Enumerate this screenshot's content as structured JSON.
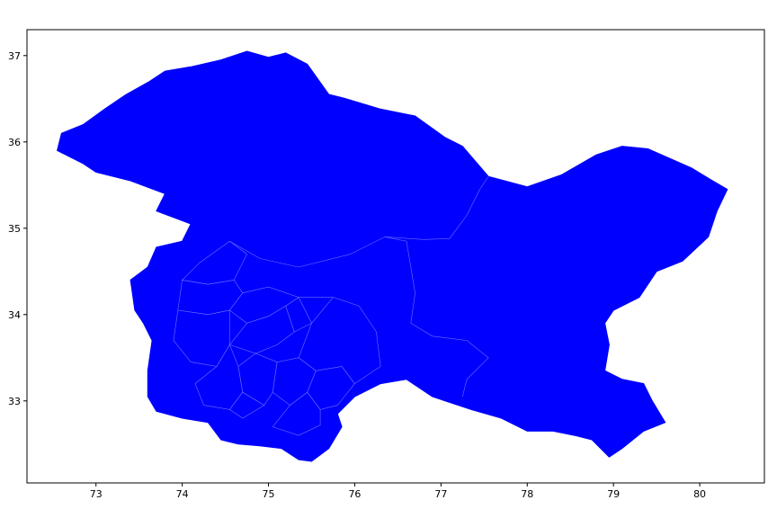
{
  "chart_data": {
    "type": "map",
    "title": "",
    "xlabel": "",
    "ylabel": "",
    "xlim": [
      72.2,
      80.75
    ],
    "ylim": [
      32.05,
      37.3
    ],
    "x_ticks": [
      73,
      74,
      75,
      76,
      77,
      78,
      79,
      80
    ],
    "y_ticks": [
      33,
      34,
      35,
      36,
      37
    ],
    "grid": false,
    "fill_color": "#0000ff",
    "boundary_color": "#6f6fff",
    "outline": [
      [
        72.55,
        35.9
      ],
      [
        72.6,
        36.1
      ],
      [
        72.85,
        36.2
      ],
      [
        73.1,
        36.38
      ],
      [
        73.35,
        36.55
      ],
      [
        73.62,
        36.7
      ],
      [
        73.8,
        36.82
      ],
      [
        74.1,
        36.87
      ],
      [
        74.45,
        36.95
      ],
      [
        74.75,
        37.05
      ],
      [
        75.0,
        36.98
      ],
      [
        75.2,
        37.03
      ],
      [
        75.45,
        36.9
      ],
      [
        75.7,
        36.55
      ],
      [
        75.9,
        36.5
      ],
      [
        76.3,
        36.38
      ],
      [
        76.7,
        36.3
      ],
      [
        77.05,
        36.05
      ],
      [
        77.25,
        35.95
      ],
      [
        77.55,
        35.6
      ],
      [
        78.0,
        35.48
      ],
      [
        78.4,
        35.62
      ],
      [
        78.8,
        35.85
      ],
      [
        79.1,
        35.95
      ],
      [
        79.4,
        35.92
      ],
      [
        79.9,
        35.7
      ],
      [
        80.15,
        35.55
      ],
      [
        80.32,
        35.45
      ],
      [
        80.2,
        35.2
      ],
      [
        80.1,
        34.9
      ],
      [
        79.8,
        34.62
      ],
      [
        79.5,
        34.5
      ],
      [
        79.3,
        34.2
      ],
      [
        79.0,
        34.05
      ],
      [
        78.9,
        33.9
      ],
      [
        78.95,
        33.65
      ],
      [
        78.9,
        33.35
      ],
      [
        79.1,
        33.25
      ],
      [
        79.35,
        33.2
      ],
      [
        79.45,
        33.0
      ],
      [
        79.6,
        32.75
      ],
      [
        79.35,
        32.65
      ],
      [
        79.1,
        32.45
      ],
      [
        78.95,
        32.35
      ],
      [
        78.75,
        32.55
      ],
      [
        78.55,
        32.6
      ],
      [
        78.3,
        32.65
      ],
      [
        78.0,
        32.65
      ],
      [
        77.7,
        32.8
      ],
      [
        77.35,
        32.9
      ],
      [
        76.9,
        33.05
      ],
      [
        76.6,
        33.25
      ],
      [
        76.3,
        33.2
      ],
      [
        76.0,
        33.05
      ],
      [
        75.8,
        32.85
      ],
      [
        75.85,
        32.7
      ],
      [
        75.7,
        32.45
      ],
      [
        75.5,
        32.3
      ],
      [
        75.35,
        32.32
      ],
      [
        75.15,
        32.45
      ],
      [
        74.9,
        32.48
      ],
      [
        74.65,
        32.5
      ],
      [
        74.45,
        32.55
      ],
      [
        74.3,
        32.75
      ],
      [
        74.0,
        32.8
      ],
      [
        73.7,
        32.88
      ],
      [
        73.6,
        33.05
      ],
      [
        73.6,
        33.35
      ],
      [
        73.65,
        33.7
      ],
      [
        73.55,
        33.9
      ],
      [
        73.45,
        34.05
      ],
      [
        73.4,
        34.4
      ],
      [
        73.6,
        34.55
      ],
      [
        73.7,
        34.78
      ],
      [
        74.0,
        34.85
      ],
      [
        74.1,
        35.05
      ],
      [
        73.7,
        35.2
      ],
      [
        73.8,
        35.4
      ],
      [
        73.4,
        35.55
      ],
      [
        73.0,
        35.65
      ],
      [
        72.85,
        35.75
      ]
    ],
    "regions": [
      {
        "points": [
          [
            74.55,
            34.85
          ],
          [
            74.2,
            34.6
          ],
          [
            74.0,
            34.4
          ],
          [
            74.3,
            34.35
          ],
          [
            74.6,
            34.4
          ],
          [
            74.75,
            34.7
          ]
        ]
      },
      {
        "points": [
          [
            74.0,
            34.4
          ],
          [
            73.95,
            34.05
          ],
          [
            74.3,
            34.0
          ],
          [
            74.55,
            34.05
          ],
          [
            74.7,
            34.25
          ],
          [
            74.6,
            34.4
          ],
          [
            74.3,
            34.35
          ]
        ]
      },
      {
        "points": [
          [
            74.7,
            34.25
          ],
          [
            74.55,
            34.05
          ],
          [
            74.75,
            33.9
          ],
          [
            75.0,
            33.98
          ],
          [
            75.2,
            34.1
          ],
          [
            75.35,
            34.2
          ],
          [
            75.0,
            34.32
          ]
        ]
      },
      {
        "points": [
          [
            74.75,
            33.9
          ],
          [
            74.55,
            33.65
          ],
          [
            74.85,
            33.55
          ],
          [
            75.1,
            33.65
          ],
          [
            75.3,
            33.8
          ],
          [
            75.2,
            34.1
          ],
          [
            75.0,
            33.98
          ]
        ]
      },
      {
        "points": [
          [
            74.3,
            34.0
          ],
          [
            73.95,
            34.05
          ],
          [
            73.9,
            33.7
          ],
          [
            74.1,
            33.45
          ],
          [
            74.4,
            33.4
          ],
          [
            74.55,
            33.65
          ],
          [
            74.55,
            34.05
          ]
        ]
      },
      {
        "points": [
          [
            74.4,
            33.4
          ],
          [
            74.15,
            33.2
          ],
          [
            74.25,
            32.95
          ],
          [
            74.55,
            32.9
          ],
          [
            74.7,
            33.1
          ],
          [
            74.65,
            33.4
          ],
          [
            74.55,
            33.65
          ]
        ]
      },
      {
        "points": [
          [
            74.7,
            33.1
          ],
          [
            74.65,
            33.4
          ],
          [
            74.85,
            33.55
          ],
          [
            75.1,
            33.45
          ],
          [
            75.05,
            33.1
          ],
          [
            74.95,
            32.95
          ]
        ]
      },
      {
        "points": [
          [
            75.05,
            33.1
          ],
          [
            75.1,
            33.45
          ],
          [
            75.35,
            33.5
          ],
          [
            75.55,
            33.35
          ],
          [
            75.45,
            33.1
          ],
          [
            75.25,
            32.95
          ]
        ]
      },
      {
        "points": [
          [
            74.95,
            32.95
          ],
          [
            74.7,
            32.8
          ],
          [
            74.55,
            32.9
          ],
          [
            74.7,
            33.1
          ]
        ]
      },
      {
        "points": [
          [
            75.45,
            33.1
          ],
          [
            75.55,
            33.35
          ],
          [
            75.85,
            33.4
          ],
          [
            76.0,
            33.2
          ],
          [
            75.8,
            32.95
          ],
          [
            75.6,
            32.9
          ]
        ]
      },
      {
        "points": [
          [
            75.55,
            33.35
          ],
          [
            75.35,
            33.5
          ],
          [
            75.5,
            33.9
          ],
          [
            75.75,
            34.2
          ],
          [
            76.05,
            34.1
          ],
          [
            76.25,
            33.8
          ],
          [
            76.3,
            33.4
          ],
          [
            76.0,
            33.2
          ],
          [
            75.85,
            33.4
          ]
        ]
      },
      {
        "points": [
          [
            75.2,
            34.1
          ],
          [
            75.3,
            33.8
          ],
          [
            75.5,
            33.9
          ],
          [
            75.35,
            34.2
          ]
        ]
      },
      {
        "points": [
          [
            75.25,
            32.95
          ],
          [
            75.05,
            32.7
          ],
          [
            75.35,
            32.6
          ],
          [
            75.6,
            32.72
          ],
          [
            75.6,
            32.9
          ],
          [
            75.45,
            33.1
          ]
        ]
      }
    ],
    "boundary_lines": [
      {
        "points": [
          [
            75.35,
            34.55
          ],
          [
            75.95,
            34.7
          ],
          [
            76.35,
            34.9
          ],
          [
            76.6,
            34.85
          ],
          [
            76.65,
            34.55
          ],
          [
            76.7,
            34.25
          ],
          [
            76.65,
            33.9
          ],
          [
            76.9,
            33.75
          ],
          [
            77.3,
            33.7
          ],
          [
            77.55,
            33.5
          ],
          [
            77.3,
            33.25
          ],
          [
            77.25,
            33.05
          ]
        ]
      },
      {
        "points": [
          [
            76.35,
            34.9
          ],
          [
            76.8,
            34.87
          ],
          [
            77.1,
            34.88
          ],
          [
            77.3,
            35.15
          ],
          [
            77.45,
            35.45
          ],
          [
            77.55,
            35.6
          ]
        ]
      },
      {
        "points": [
          [
            74.55,
            34.85
          ],
          [
            74.9,
            34.65
          ],
          [
            75.35,
            34.55
          ]
        ]
      },
      {
        "points": [
          [
            75.35,
            34.2
          ],
          [
            75.75,
            34.2
          ]
        ]
      }
    ]
  }
}
